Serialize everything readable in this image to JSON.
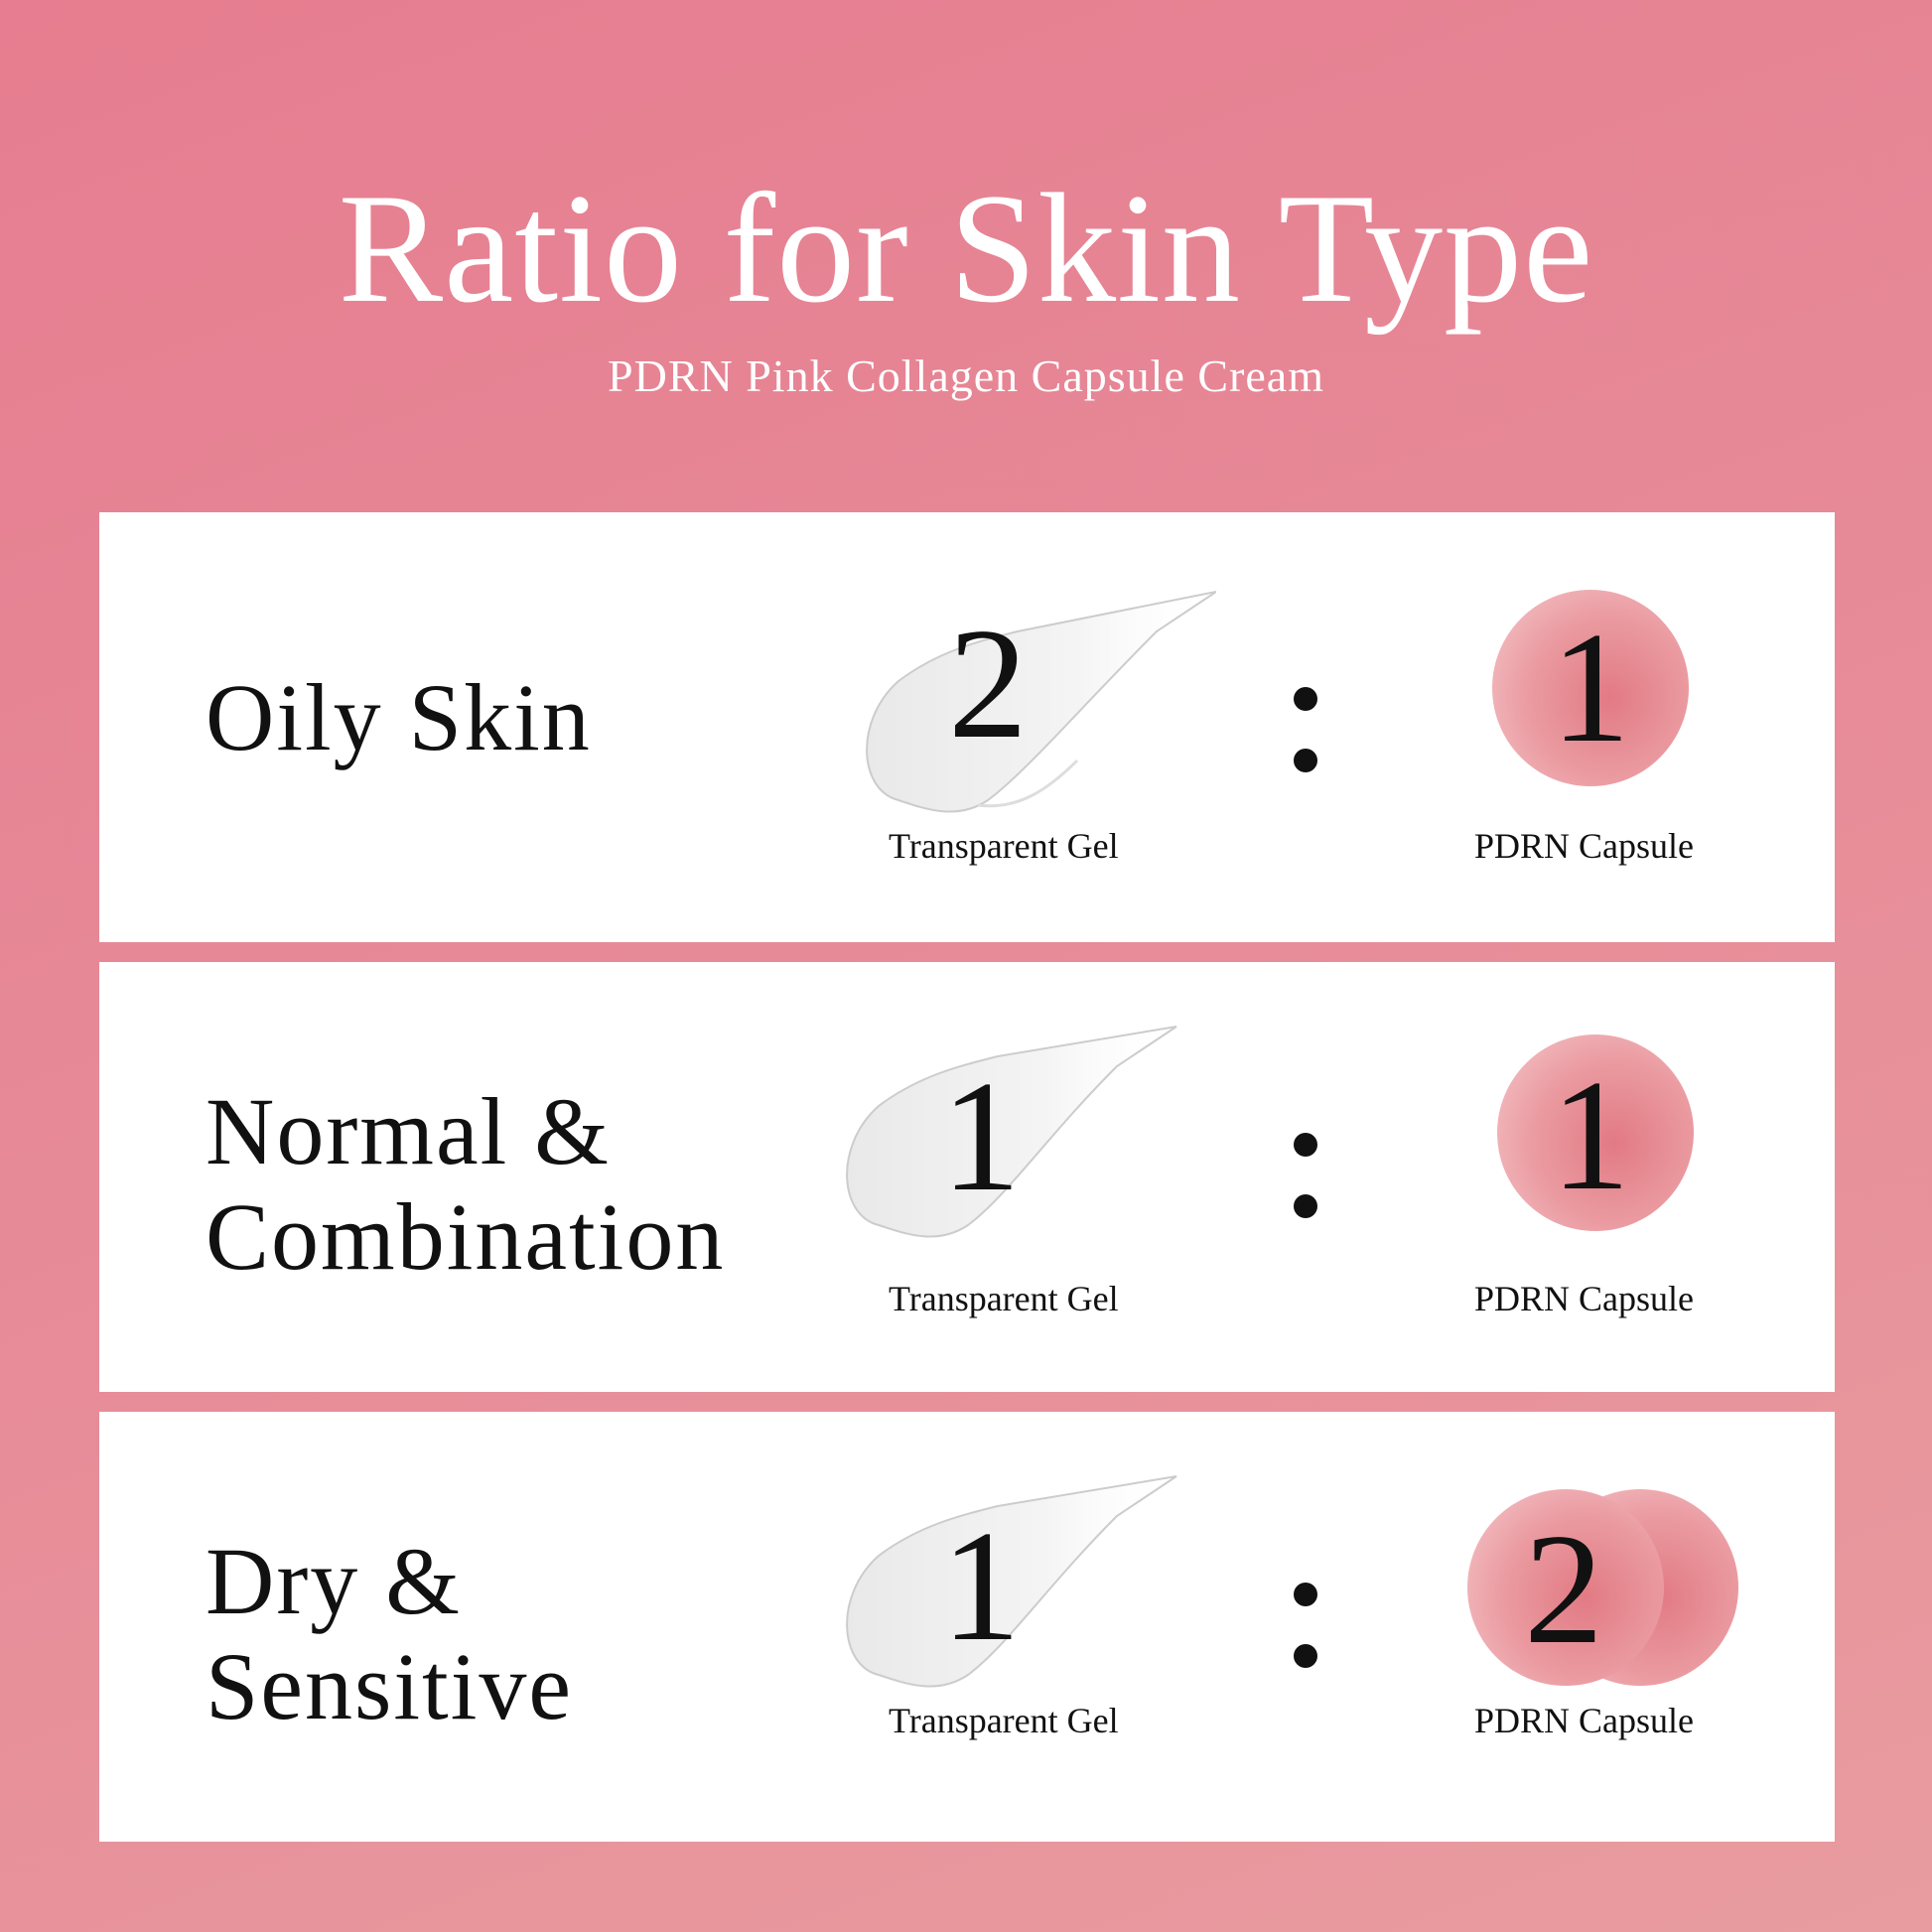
{
  "header": {
    "title": "Ratio for Skin Type",
    "subtitle": "PDRN Pink Collagen Capsule Cream"
  },
  "colors": {
    "background": "#e6808f",
    "card": "#ffffff",
    "capsule": "#e27a84"
  },
  "rows": [
    {
      "skin_type": "Oily Skin",
      "gel_ratio": "2",
      "separator": ":",
      "capsule_ratio": "1",
      "gel_label": "Transparent Gel",
      "capsule_label": "PDRN Capsule"
    },
    {
      "skin_type": "Normal & Combination",
      "gel_ratio": "1",
      "separator": ":",
      "capsule_ratio": "1",
      "gel_label": "Transparent Gel",
      "capsule_label": "PDRN Capsule"
    },
    {
      "skin_type": "Dry & Sensitive",
      "gel_ratio": "1",
      "separator": ":",
      "capsule_ratio": "2",
      "gel_label": "Transparent Gel",
      "capsule_label": "PDRN Capsule"
    }
  ]
}
